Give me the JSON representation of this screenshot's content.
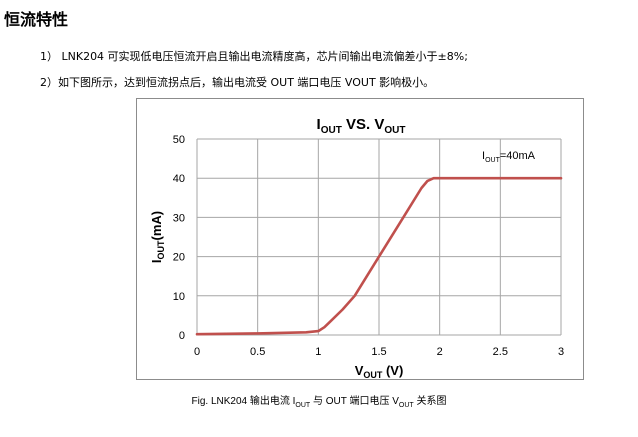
{
  "section": {
    "heading": "恒流特性",
    "paragraphs": [
      "1） LNK204 可实现低电压恒流开启且输出电流精度高，芯片间输出电流偏差小于±8%;",
      "2）如下图所示，达到恒流拐点后，输出电流受 OUT 端口电压 VOUT 影响极小。"
    ]
  },
  "caption": {
    "prefix": "Fig. LNK204 输出电流 I",
    "sub1": "OUT",
    "middle": " 与 OUT 端口电压 V",
    "sub2": "OUT",
    "suffix": " 关系图"
  },
  "colors": {
    "series": "#c0504d",
    "grid": "#a6a6a6",
    "frame": "#8c8c8c"
  },
  "chart_data": {
    "type": "line",
    "title": {
      "main": "I",
      "sub1": "OUT",
      "mid": " VS. V",
      "sub2": "OUT"
    },
    "xlabel": {
      "main": "V",
      "sub": "OUT",
      "rest": " (V)"
    },
    "ylabel": {
      "main": "I",
      "sub": "OUT",
      "rest": "(mA)"
    },
    "annotation": {
      "main": "I",
      "sub": "OUT",
      "rest": "=40mA"
    },
    "xlim": [
      0,
      3
    ],
    "ylim": [
      0,
      50
    ],
    "xticks": [
      0,
      0.5,
      1,
      1.5,
      2,
      2.5,
      3
    ],
    "xtick_labels": [
      "0",
      "0.5",
      "1",
      "1.5",
      "2",
      "2.5",
      "3"
    ],
    "yticks": [
      0,
      10,
      20,
      30,
      40,
      50
    ],
    "ytick_labels": [
      "0",
      "10",
      "20",
      "30",
      "40",
      "50"
    ],
    "grid": true,
    "legend": false,
    "series": [
      {
        "x": [
          0,
          0.5,
          0.9,
          1.0,
          1.05,
          1.1,
          1.2,
          1.3,
          1.5,
          1.7,
          1.85,
          1.9,
          1.95,
          2.0,
          2.5,
          3.0
        ],
        "y": [
          0.2,
          0.4,
          0.7,
          1.0,
          2.0,
          3.5,
          6.5,
          10.0,
          20.0,
          30.0,
          37.5,
          39.3,
          40.0,
          40.0,
          40.0,
          40.0
        ]
      }
    ]
  }
}
